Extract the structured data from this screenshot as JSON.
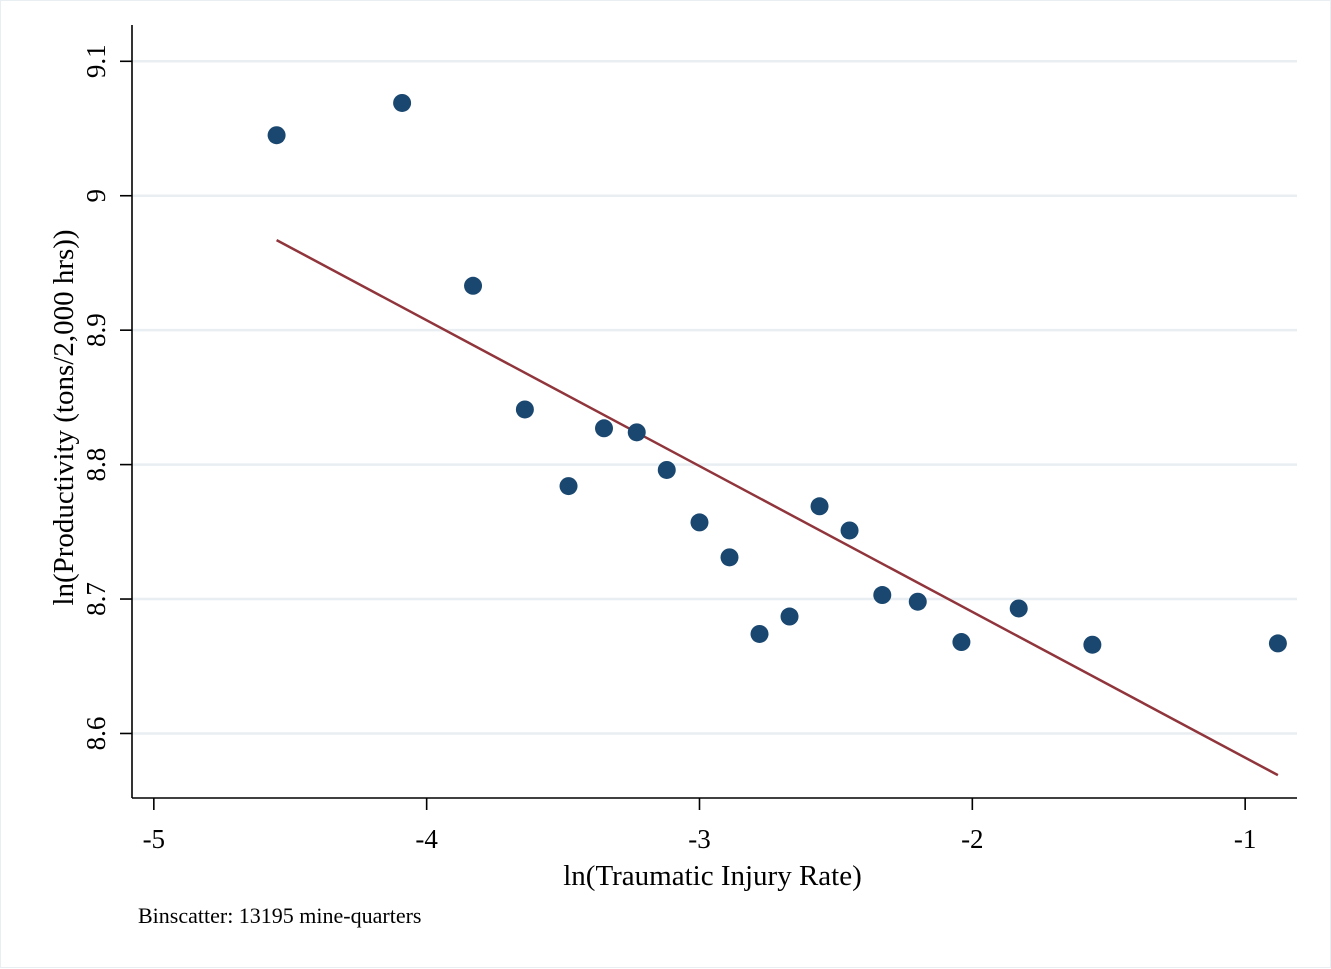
{
  "chart_data": {
    "type": "scatter",
    "title": "",
    "xlabel": "ln(Traumatic Injury Rate)",
    "ylabel": "ln(Productivity (tons/2,000 hrs))",
    "note": "Binscatter: 13195 mine-quarters",
    "xlim": [
      -5.08,
      -0.81
    ],
    "ylim": [
      8.552,
      9.127
    ],
    "x_ticks": [
      -5,
      -4,
      -3,
      -2,
      -1
    ],
    "x_tick_labels": [
      "-5",
      "-4",
      "-3",
      "-2",
      "-1"
    ],
    "y_ticks": [
      8.6,
      8.7,
      8.8,
      8.9,
      9.0,
      9.1
    ],
    "y_tick_labels": [
      "8.6",
      "8.7",
      "8.8",
      "8.9",
      "9",
      "9.1"
    ],
    "grid": true,
    "legend": "none",
    "points": [
      {
        "x": -4.55,
        "y": 9.045
      },
      {
        "x": -4.09,
        "y": 9.069
      },
      {
        "x": -3.83,
        "y": 8.933
      },
      {
        "x": -3.64,
        "y": 8.841
      },
      {
        "x": -3.48,
        "y": 8.784
      },
      {
        "x": -3.35,
        "y": 8.827
      },
      {
        "x": -3.23,
        "y": 8.824
      },
      {
        "x": -3.12,
        "y": 8.796
      },
      {
        "x": -3.0,
        "y": 8.757
      },
      {
        "x": -2.89,
        "y": 8.731
      },
      {
        "x": -2.78,
        "y": 8.674
      },
      {
        "x": -2.67,
        "y": 8.687
      },
      {
        "x": -2.56,
        "y": 8.769
      },
      {
        "x": -2.45,
        "y": 8.751
      },
      {
        "x": -2.33,
        "y": 8.703
      },
      {
        "x": -2.2,
        "y": 8.698
      },
      {
        "x": -2.04,
        "y": 8.668
      },
      {
        "x": -1.83,
        "y": 8.693
      },
      {
        "x": -1.56,
        "y": 8.666
      },
      {
        "x": -0.88,
        "y": 8.667
      }
    ],
    "fit_line": {
      "x": [
        -4.55,
        -0.88
      ],
      "y": [
        8.967,
        8.569
      ]
    },
    "colors": {
      "points": "#1a476f",
      "fit_line": "#90353b",
      "grid": "#e8eef2"
    }
  }
}
